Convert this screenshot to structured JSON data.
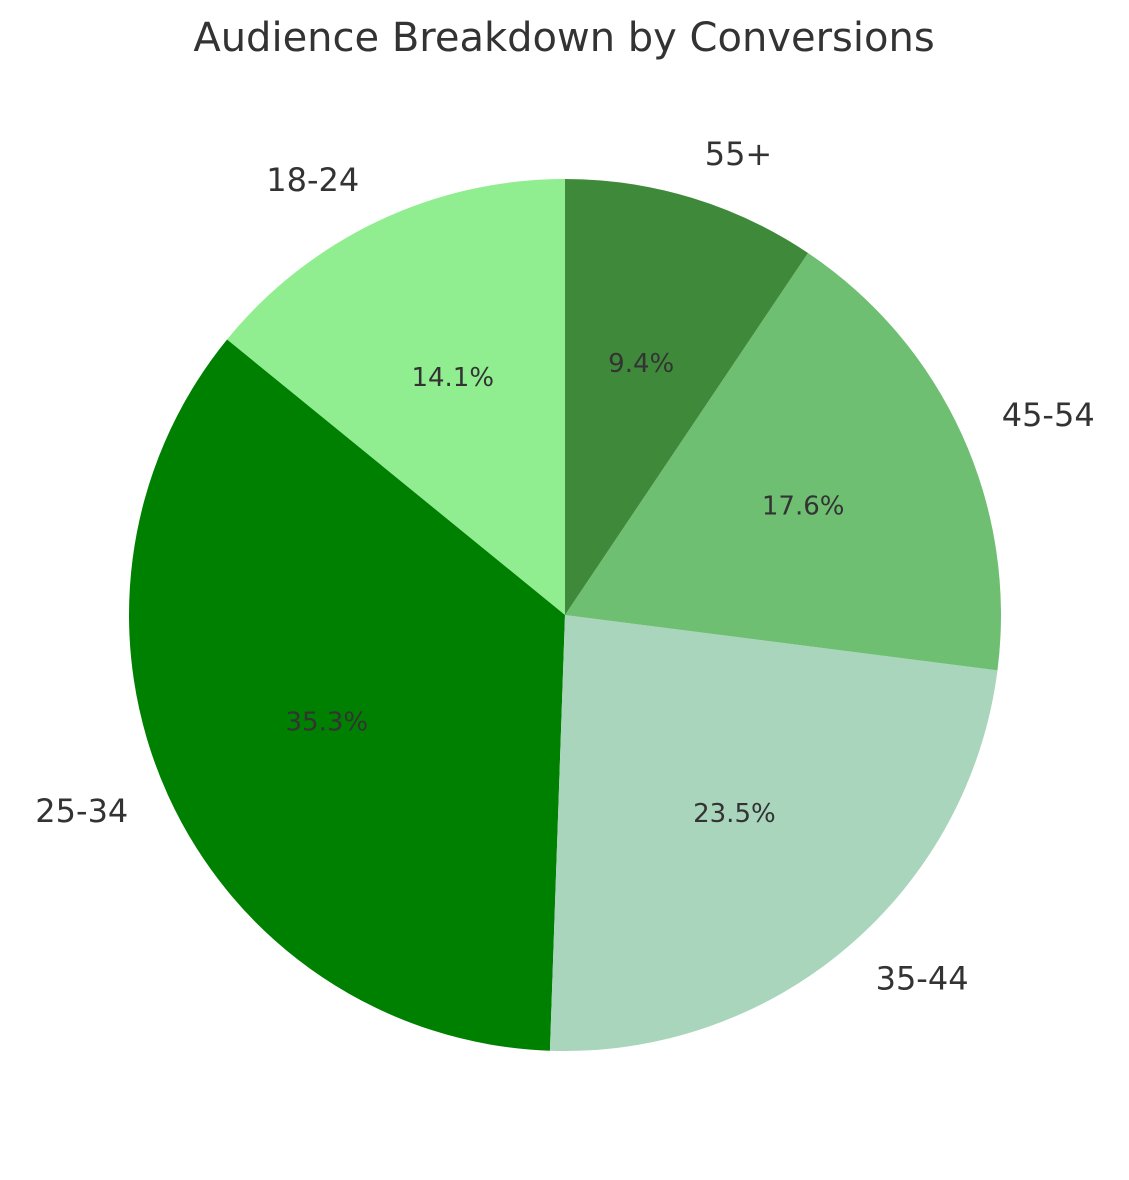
{
  "chart_data": {
    "type": "pie",
    "title": "Audience Breakdown by Conversions",
    "categories": [
      "18-24",
      "25-34",
      "35-44",
      "45-54",
      "55+"
    ],
    "values": [
      14.1,
      35.3,
      23.5,
      17.6,
      9.4
    ],
    "value_labels": [
      "14.1%",
      "35.3%",
      "23.5%",
      "17.6%",
      "9.4%"
    ],
    "colors": [
      "#90ee90",
      "#008000",
      "#a8d5bb",
      "#6fbf73",
      "#3f8a3a"
    ]
  }
}
